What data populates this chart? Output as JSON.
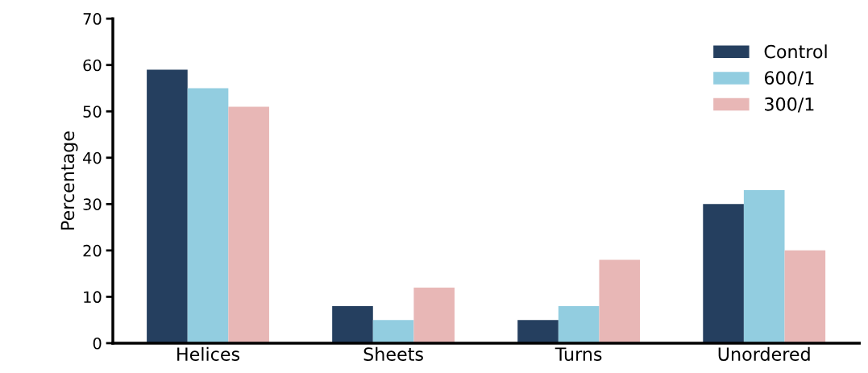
{
  "chart_data": {
    "type": "bar",
    "ylabel": "Percentage",
    "categories": [
      "Helices",
      "Sheets",
      "Turns",
      "Unordered"
    ],
    "series": [
      {
        "name": "Control",
        "color": "#253f5f",
        "values": [
          59,
          8,
          5,
          30
        ]
      },
      {
        "name": "600/1",
        "color": "#92cde0",
        "values": [
          55,
          5,
          8,
          33
        ]
      },
      {
        "name": "300/1",
        "color": "#e8b7b6",
        "values": [
          51,
          12,
          18,
          20
        ]
      }
    ],
    "ylim": [
      0,
      70
    ],
    "yticks": [
      0,
      10,
      20,
      30,
      40,
      50,
      60,
      70
    ],
    "grid": false,
    "legend": "top right"
  }
}
